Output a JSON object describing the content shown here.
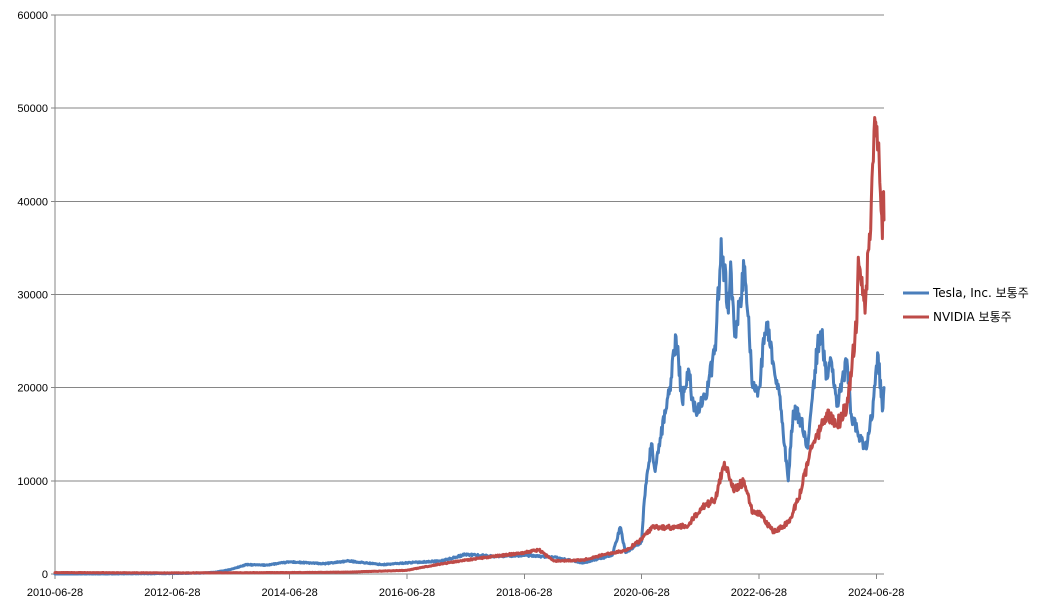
{
  "chart_data": {
    "type": "line",
    "title": "",
    "xlabel": "",
    "ylabel": "",
    "xlim": [
      "2010-06-28",
      "2024-08-15"
    ],
    "ylim": [
      0,
      60000
    ],
    "yticks": [
      0,
      10000,
      20000,
      30000,
      40000,
      50000,
      60000
    ],
    "yticklabels": [
      "0",
      "10000",
      "20000",
      "30000",
      "40000",
      "50000",
      "60000"
    ],
    "xticks": [
      "2010-06-28",
      "2012-06-28",
      "2014-06-28",
      "2016-06-28",
      "2018-06-28",
      "2020-06-28",
      "2022-06-28",
      "2024-06-28"
    ],
    "grid": true,
    "legend_position": "right",
    "series": [
      {
        "name": "Tesla, Inc. 보통주",
        "color": "#4a7ebb",
        "points": [
          [
            "2010-06-28",
            0
          ],
          [
            "2011-06-28",
            10
          ],
          [
            "2012-06-28",
            50
          ],
          [
            "2012-12-28",
            100
          ],
          [
            "2013-03-28",
            200
          ],
          [
            "2013-06-28",
            500
          ],
          [
            "2013-10-01",
            1000
          ],
          [
            "2014-01-28",
            950
          ],
          [
            "2014-06-28",
            1300
          ],
          [
            "2015-01-28",
            1100
          ],
          [
            "2015-06-28",
            1400
          ],
          [
            "2016-01-28",
            1000
          ],
          [
            "2016-06-28",
            1200
          ],
          [
            "2017-01-28",
            1400
          ],
          [
            "2017-06-28",
            2100
          ],
          [
            "2017-12-28",
            1900
          ],
          [
            "2018-06-28",
            2000
          ],
          [
            "2018-12-28",
            1800
          ],
          [
            "2019-06-28",
            1200
          ],
          [
            "2019-12-28",
            2000
          ],
          [
            "2020-02-15",
            5000
          ],
          [
            "2020-03-20",
            2300
          ],
          [
            "2020-06-28",
            3500
          ],
          [
            "2020-07-15",
            8000
          ],
          [
            "2020-08-28",
            14000
          ],
          [
            "2020-09-20",
            11000
          ],
          [
            "2020-12-28",
            21000
          ],
          [
            "2021-01-28",
            25500
          ],
          [
            "2021-03-08",
            18500
          ],
          [
            "2021-04-15",
            22000
          ],
          [
            "2021-05-20",
            17500
          ],
          [
            "2021-07-28",
            19000
          ],
          [
            "2021-10-01",
            24000
          ],
          [
            "2021-11-05",
            36000
          ],
          [
            "2021-12-20",
            28000
          ],
          [
            "2022-01-03",
            33500
          ],
          [
            "2022-01-28",
            25500
          ],
          [
            "2022-04-01",
            33000
          ],
          [
            "2022-05-20",
            20000
          ],
          [
            "2022-06-28",
            20000
          ],
          [
            "2022-08-15",
            27000
          ],
          [
            "2022-10-01",
            22000
          ],
          [
            "2022-11-15",
            17500
          ],
          [
            "2022-12-28",
            10000
          ],
          [
            "2023-01-28",
            17500
          ],
          [
            "2023-03-20",
            16500
          ],
          [
            "2023-04-28",
            13500
          ],
          [
            "2023-06-28",
            24500
          ],
          [
            "2023-07-20",
            26000
          ],
          [
            "2023-08-28",
            21000
          ],
          [
            "2023-09-20",
            23000
          ],
          [
            "2023-10-30",
            18000
          ],
          [
            "2023-12-28",
            23000
          ],
          [
            "2024-01-28",
            16500
          ],
          [
            "2024-04-20",
            13500
          ],
          [
            "2024-05-28",
            16500
          ],
          [
            "2024-07-10",
            23500
          ],
          [
            "2024-07-28",
            19000
          ],
          [
            "2024-08-05",
            17500
          ],
          [
            "2024-08-15",
            20000
          ]
        ]
      },
      {
        "name": "NVIDIA 보통주",
        "color": "#be4b48",
        "points": [
          [
            "2010-06-28",
            150
          ],
          [
            "2012-06-28",
            120
          ],
          [
            "2014-06-28",
            150
          ],
          [
            "2015-06-28",
            200
          ],
          [
            "2016-06-28",
            400
          ],
          [
            "2016-12-28",
            1000
          ],
          [
            "2017-06-28",
            1500
          ],
          [
            "2017-12-28",
            1900
          ],
          [
            "2018-06-28",
            2300
          ],
          [
            "2018-09-28",
            2600
          ],
          [
            "2018-12-28",
            1400
          ],
          [
            "2019-06-28",
            1500
          ],
          [
            "2019-12-28",
            2300
          ],
          [
            "2020-03-20",
            2500
          ],
          [
            "2020-06-28",
            3700
          ],
          [
            "2020-09-01",
            5000
          ],
          [
            "2021-01-28",
            5000
          ],
          [
            "2021-04-15",
            5200
          ],
          [
            "2021-06-28",
            7000
          ],
          [
            "2021-09-28",
            8000
          ],
          [
            "2021-11-25",
            12000
          ],
          [
            "2022-01-28",
            9000
          ],
          [
            "2022-03-28",
            10000
          ],
          [
            "2022-05-20",
            6500
          ],
          [
            "2022-06-28",
            6500
          ],
          [
            "2022-09-28",
            4500
          ],
          [
            "2022-12-28",
            5500
          ],
          [
            "2023-02-28",
            8000
          ],
          [
            "2023-05-30",
            14000
          ],
          [
            "2023-06-28",
            15000
          ],
          [
            "2023-08-28",
            17000
          ],
          [
            "2023-10-30",
            16000
          ],
          [
            "2023-12-28",
            18000
          ],
          [
            "2024-02-28",
            27000
          ],
          [
            "2024-03-08",
            34000
          ],
          [
            "2024-04-19",
            28000
          ],
          [
            "2024-05-28",
            40000
          ],
          [
            "2024-06-18",
            49000
          ],
          [
            "2024-06-28",
            47000
          ],
          [
            "2024-07-10",
            46000
          ],
          [
            "2024-07-20",
            42000
          ],
          [
            "2024-07-28",
            39000
          ],
          [
            "2024-08-05",
            36000
          ],
          [
            "2024-08-10",
            41000
          ],
          [
            "2024-08-15",
            38000
          ]
        ]
      }
    ]
  }
}
